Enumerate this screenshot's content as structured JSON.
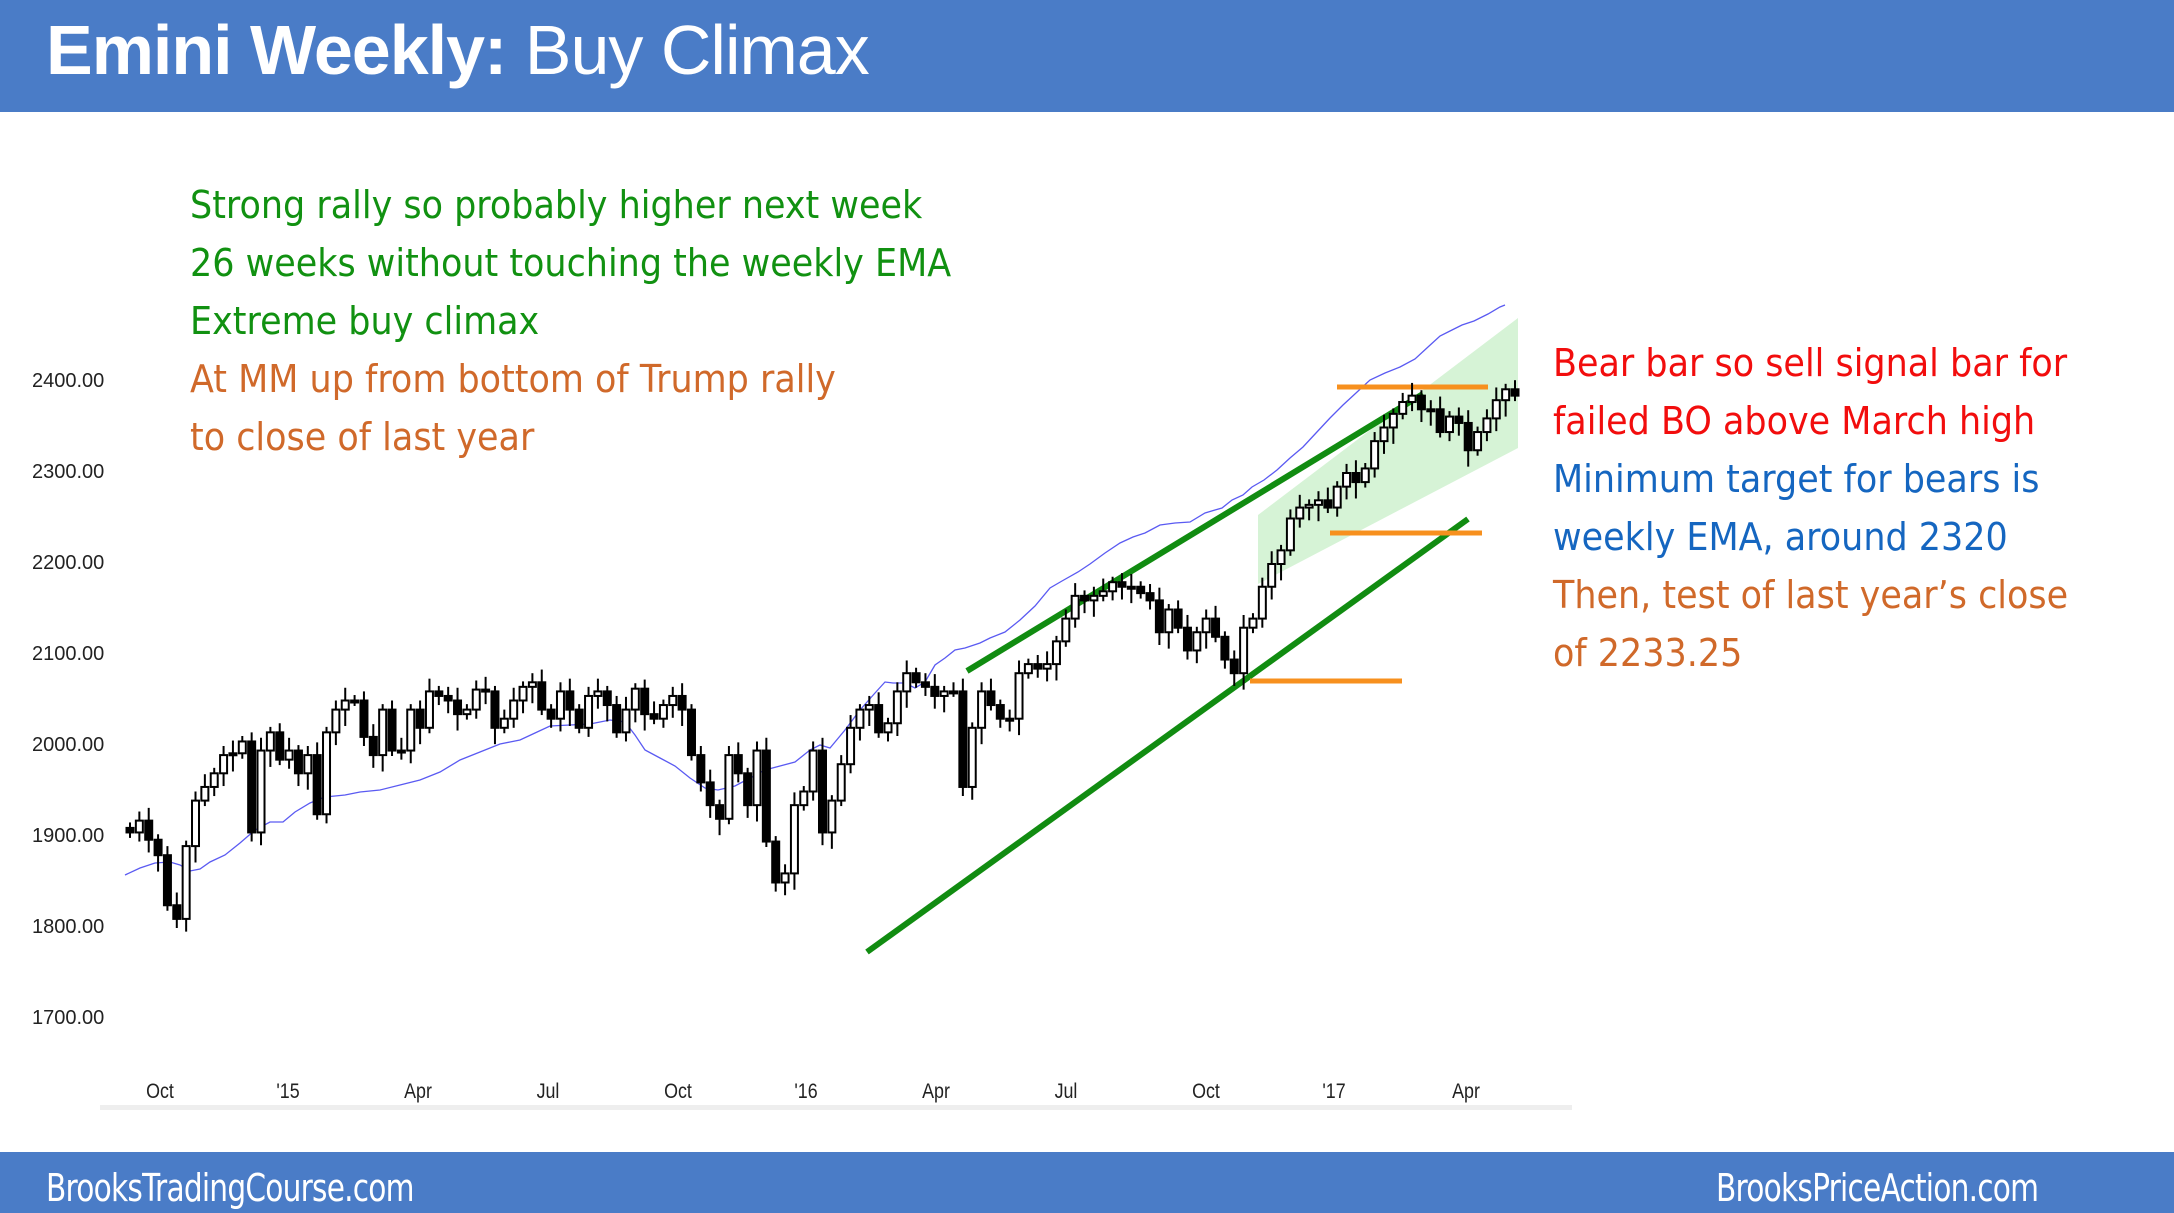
{
  "header": {
    "title_bold": "Emini Weekly:",
    "title_rest": " Buy Climax"
  },
  "footer": {
    "left": "BrooksTradingCourse.com",
    "right": "BrooksPriceAction.com"
  },
  "notes_left": [
    {
      "text": "Strong rally so probably higher next week",
      "color": "#119111"
    },
    {
      "text": "26 weeks without touching the weekly EMA",
      "color": "#119111"
    },
    {
      "text": "Extreme buy climax",
      "color": "#119111"
    },
    {
      "text": "At MM up from bottom of Trump rally",
      "color": "#d0692a"
    },
    {
      "text": "to close of last year",
      "color": "#d0692a"
    }
  ],
  "notes_right": [
    {
      "text": "Bear bar so sell signal bar for",
      "color": "#f20d0d"
    },
    {
      "text": "failed BO above March high",
      "color": "#f20d0d"
    },
    {
      "text": "Minimum target for bears is",
      "color": "#1566c0"
    },
    {
      "text": "weekly EMA, around 2320",
      "color": "#1566c0"
    },
    {
      "text": "Then, test of last year’s close",
      "color": "#d0692a"
    },
    {
      "text": "of 2233.25",
      "color": "#d0692a"
    }
  ],
  "chart_data": {
    "type": "candlestick",
    "title": "Emini Weekly: Buy Climax",
    "instrument": "Emini S&P 500",
    "timeframe": "Weekly",
    "xlabel": "",
    "ylabel": "",
    "y_ticks": [
      "2400.00",
      "2300.00",
      "2200.00",
      "2100.00",
      "2000.00",
      "1900.00",
      "1800.00",
      "1700.00"
    ],
    "ylim": [
      1700,
      2460
    ],
    "x_ticks": [
      "Oct",
      "'15",
      "Apr",
      "Jul",
      "Oct",
      "'16",
      "Apr",
      "Jul",
      "Oct",
      "'17",
      "Apr"
    ],
    "grid": false,
    "series": [
      {
        "name": "Weekly price bars (OHLC)",
        "type": "candlestick",
        "color_bull": "#ffffff",
        "color_bear": "#000000"
      },
      {
        "name": "20-week EMA",
        "type": "line",
        "color": "#4b4bf0"
      }
    ],
    "ohlc_approx": [
      [
        1910,
        1925,
        1895,
        1905
      ],
      [
        1900,
        1935,
        1895,
        1920
      ],
      [
        1920,
        1922,
        1890,
        1895
      ],
      [
        1895,
        1900,
        1845,
        1880
      ],
      [
        1890,
        1895,
        1820,
        1825
      ],
      [
        1815,
        1830,
        1740,
        1810
      ],
      [
        1810,
        1890,
        1805,
        1890
      ],
      [
        1890,
        1945,
        1880,
        1940
      ],
      [
        1940,
        1960,
        1930,
        1955
      ],
      [
        1955,
        1980,
        1950,
        1970
      ],
      [
        1965,
        1995,
        1955,
        1990
      ],
      [
        1990,
        2000,
        1985,
        1992
      ],
      [
        1990,
        2010,
        1970,
        2005
      ],
      [
        2000,
        2000,
        1905,
        1905
      ],
      [
        1905,
        2000,
        1900,
        1995
      ],
      [
        2010,
        2020,
        2000,
        2015
      ],
      [
        2015,
        2015,
        1985,
        1985
      ],
      [
        1995,
        2000,
        1925,
        1995
      ],
      [
        1990,
        1995,
        1930,
        1970
      ],
      [
        1970,
        1990,
        1935,
        1990
      ],
      [
        1990,
        2000,
        1925,
        1925
      ],
      [
        1920,
        2010,
        1920,
        2015
      ],
      [
        2015,
        2040,
        1985,
        2040
      ],
      [
        2040,
        2055,
        2030,
        2050
      ],
      [
        2052,
        2055,
        2040,
        2050
      ],
      [
        2050,
        2055,
        2000,
        2010
      ],
      [
        2010,
        2015,
        1995,
        1990
      ],
      [
        1985,
        2050,
        1975,
        2040
      ],
      [
        2040,
        2055,
        1980,
        1995
      ],
      [
        1995,
        2050,
        1995,
        1995
      ],
      [
        1995,
        2045,
        1990,
        2040
      ],
      [
        2030,
        2045,
        2015,
        2020
      ],
      [
        2020,
        2060,
        2010,
        2060
      ],
      [
        2065,
        2070,
        2040,
        2055
      ]
    ],
    "annotations": [
      {
        "type": "trendline",
        "color": "#0f8c0f",
        "label": "bull channel upper line",
        "from": [
          "Apr '16",
          2085
        ],
        "to": [
          "Mar '17",
          2390
        ]
      },
      {
        "type": "trendline",
        "color": "#0f8c0f",
        "label": "bull channel lower line",
        "from": [
          "Feb '16",
          1775
        ],
        "to": [
          "Apr '17",
          2255
        ]
      },
      {
        "type": "hline",
        "color": "#f7901e",
        "label": "March high",
        "value": 2395
      },
      {
        "type": "hline",
        "color": "#f7901e",
        "label": "last year's close",
        "value": 2233.25
      },
      {
        "type": "hline",
        "color": "#f7901e",
        "label": "Trump rally bottom",
        "value": 2070
      },
      {
        "type": "shaded_channel",
        "color": "#c8eec8",
        "label": "Trump rally channel"
      }
    ],
    "key_values": {
      "ema_target": 2320,
      "last_year_close": 2233.25,
      "march_high": 2395,
      "trump_rally_low": 2070
    }
  }
}
